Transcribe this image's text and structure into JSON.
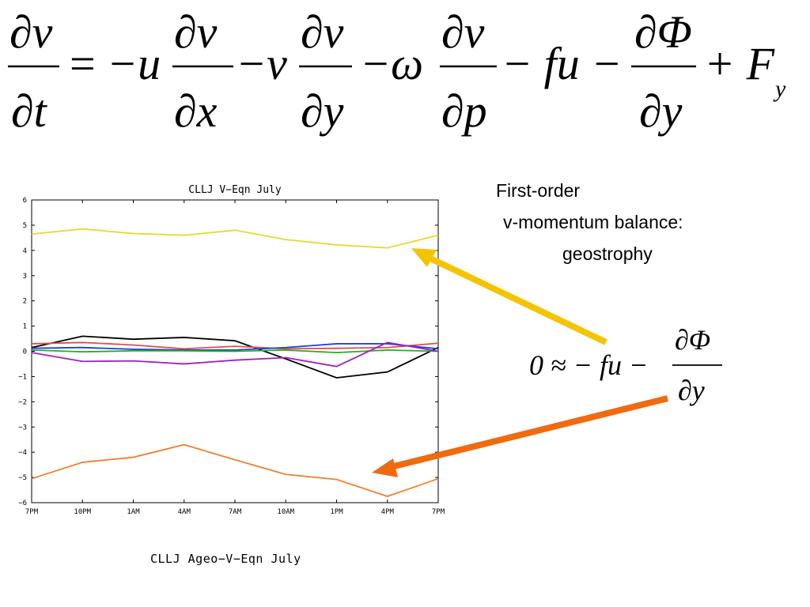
{
  "equation": {
    "lhs_num": "∂v",
    "lhs_den": "∂t",
    "equals": "=",
    "term1_sign": "−u",
    "term1_num": "∂v",
    "term1_den": "∂x",
    "term2_sign": "−v",
    "term2_num": "∂v",
    "term2_den": "∂y",
    "term3_sign": "−ω",
    "term3_num": "∂v",
    "term3_den": "∂p",
    "term4": "− fu −",
    "term5_num": "∂Φ",
    "term5_den": "∂y",
    "term6": "+ F",
    "term6_sub": "y"
  },
  "annotation": {
    "line1": "First-order",
    "line2": "v-momentum balance:",
    "line3": "geostrophy"
  },
  "geostrophy_equation": {
    "lhs": "0 ≈ − fu −",
    "num": "∂Φ",
    "den": "∂y"
  },
  "arrow_colors": {
    "yellow_arrow": "#f5c400",
    "orange_arrow": "#f06a10"
  },
  "caption": "CLLJ Ageo−V−Eqn July",
  "chart_data": {
    "type": "line",
    "title": "CLLJ V−Eqn July",
    "categories": [
      "7PM",
      "10PM",
      "1AM",
      "4AM",
      "7AM",
      "10AM",
      "1PM",
      "4PM",
      "7PM"
    ],
    "ylim": [
      -6,
      6
    ],
    "yticks": [
      "6",
      "5",
      "4",
      "3",
      "2",
      "1",
      "0",
      "−1",
      "−2",
      "−3",
      "−4",
      "−5",
      "−6"
    ],
    "grid": false,
    "series": [
      {
        "color": "#e8d830",
        "values": [
          4.65,
          4.85,
          4.67,
          4.6,
          4.8,
          4.43,
          4.22,
          4.1,
          4.6
        ]
      },
      {
        "color": "#000000",
        "values": [
          0.15,
          0.6,
          0.48,
          0.55,
          0.42,
          -0.3,
          -1.05,
          -0.82,
          0.15
        ]
      },
      {
        "color": "#e05050",
        "values": [
          0.3,
          0.35,
          0.25,
          0.1,
          0.2,
          0.1,
          0.12,
          0.15,
          0.32
        ]
      },
      {
        "color": "#2040e0",
        "values": [
          0.12,
          0.15,
          0.08,
          0.05,
          0.05,
          0.15,
          0.3,
          0.3,
          0.1
        ]
      },
      {
        "color": "#20b020",
        "values": [
          0.05,
          -0.02,
          0.02,
          0.02,
          0.0,
          0.05,
          -0.05,
          0.05,
          0.0
        ]
      },
      {
        "color": "#a020c0",
        "values": [
          -0.05,
          -0.4,
          -0.38,
          -0.5,
          -0.35,
          -0.25,
          -0.6,
          0.35,
          0.0
        ]
      },
      {
        "color": "#f08030",
        "values": [
          -5.05,
          -4.4,
          -4.2,
          -3.7,
          -4.3,
          -4.88,
          -5.08,
          -5.75,
          -5.05
        ]
      }
    ]
  }
}
